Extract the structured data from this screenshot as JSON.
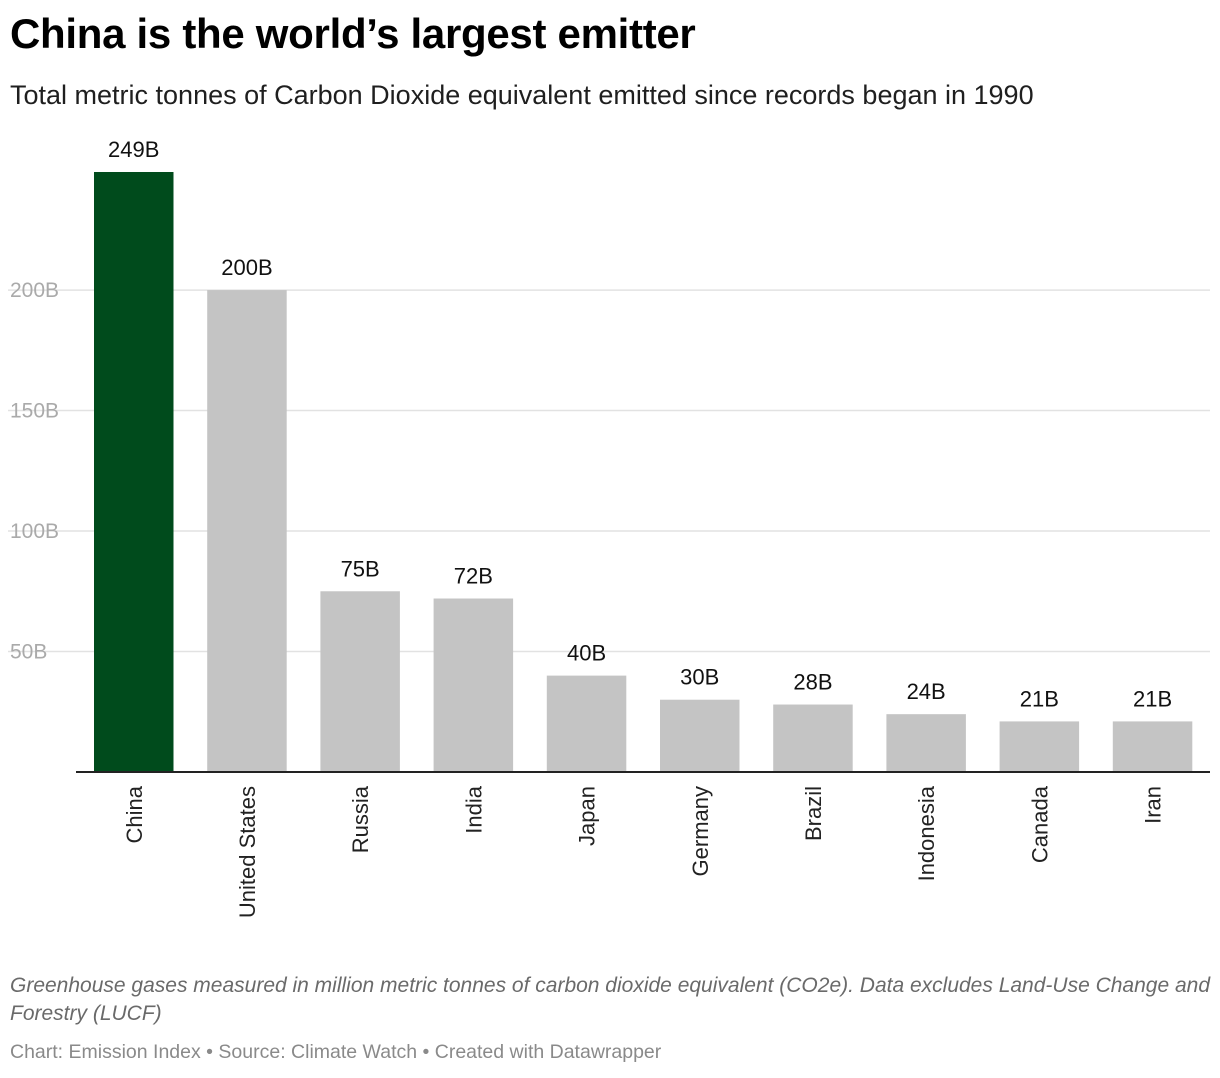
{
  "header": {
    "title": "China is the world’s largest emitter",
    "subtitle": "Total metric tonnes of Carbon Dioxide equivalent emitted since records began in 1990"
  },
  "footer": {
    "notes": "Greenhouse gases measured in million metric tonnes of carbon dioxide equivalent (CO2e). Data excludes Land-Use Change and Forestry (LUCF)",
    "credits": "Chart: Emission Index • Source: Climate Watch • Created with Datawrapper"
  },
  "chart_data": {
    "type": "bar",
    "title": "China is the world’s largest emitter",
    "subtitle": "Total metric tonnes of Carbon Dioxide equivalent emitted since records began in 1990",
    "xlabel": "",
    "ylabel": "",
    "categories": [
      "China",
      "United States",
      "Russia",
      "India",
      "Japan",
      "Germany",
      "Brazil",
      "Indonesia",
      "Canada",
      "Iran"
    ],
    "values": [
      249,
      200,
      75,
      72,
      40,
      30,
      28,
      24,
      21,
      21
    ],
    "value_labels": [
      "249B",
      "200B",
      "75B",
      "72B",
      "40B",
      "30B",
      "28B",
      "24B",
      "21B",
      "21B"
    ],
    "unit_suffix": "B",
    "ylim": [
      0,
      249
    ],
    "yticks": [
      50,
      100,
      150,
      200
    ],
    "ytick_labels": [
      "50B",
      "100B",
      "150B",
      "200B"
    ],
    "grid": true,
    "legend": "none",
    "colors": {
      "highlight": "#004b1c",
      "default": "#c4c4c4",
      "gridline": "#e2e2e2",
      "axis": "#222222",
      "tick_label": "#aaaaaa"
    },
    "highlight_category": "China"
  }
}
